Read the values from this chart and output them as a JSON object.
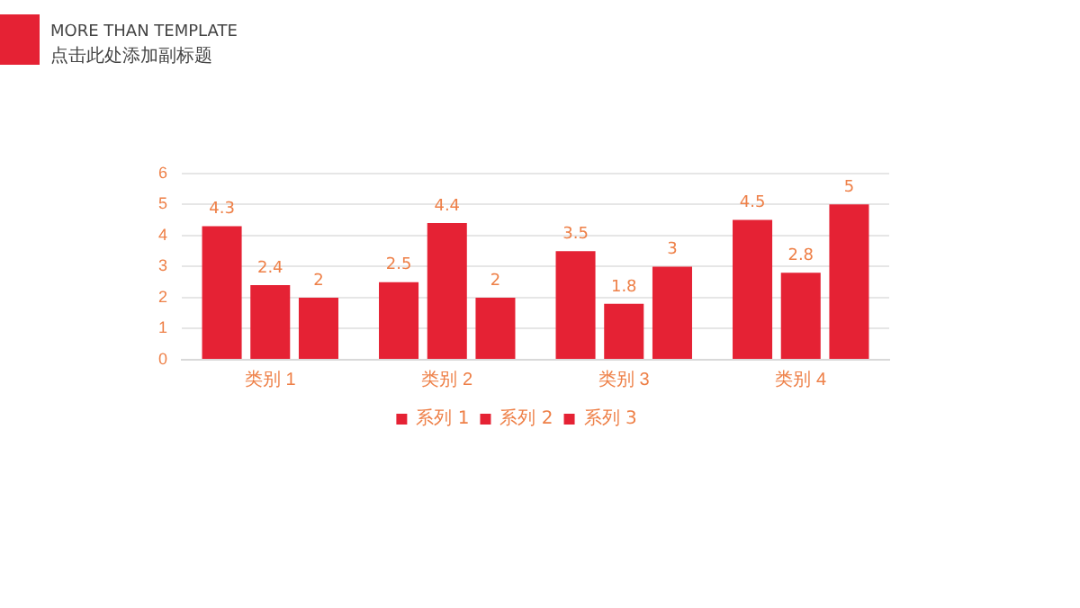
{
  "chart_data": {
    "type": "bar",
    "title": "MORE THAN TEMPLATE",
    "subtitle": "点击此处添加副标题",
    "categories": [
      "类别 1",
      "类别 2",
      "类别 3",
      "类别 4"
    ],
    "series": [
      {
        "name": "系列 1",
        "color": "#e52234",
        "values": [
          4.3,
          2.5,
          3.5,
          4.5
        ]
      },
      {
        "name": "系列 2",
        "color": "#e52234",
        "values": [
          2.4,
          4.4,
          1.8,
          2.8
        ]
      },
      {
        "name": "系列 3",
        "color": "#e52234",
        "values": [
          2,
          2,
          3,
          5
        ]
      }
    ],
    "ylim": [
      0,
      6
    ],
    "yticks": [
      0,
      1,
      2,
      3,
      4,
      5,
      6
    ],
    "grid": "y",
    "legend": "bottom",
    "data_labels": true
  }
}
